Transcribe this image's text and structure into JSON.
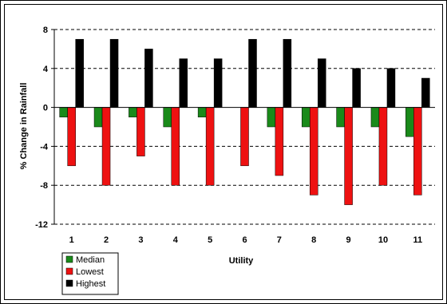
{
  "chart_data": {
    "type": "bar",
    "title": "",
    "xlabel": "Utility",
    "ylabel": "% Change in Rainfall",
    "categories": [
      "1",
      "2",
      "3",
      "4",
      "5",
      "6",
      "7",
      "8",
      "9",
      "10",
      "11"
    ],
    "series": [
      {
        "name": "Median",
        "color": "#1a8a1a",
        "values": [
          -1,
          -2,
          -1,
          -2,
          -1,
          0,
          -2,
          -2,
          -2,
          -2,
          -3
        ]
      },
      {
        "name": "Lowest",
        "color": "#ee1111",
        "values": [
          -6,
          -8,
          -5,
          -8,
          -8,
          -6,
          -7,
          -9,
          -10,
          -8,
          -9
        ]
      },
      {
        "name": "Highest",
        "color": "#000000",
        "values": [
          7,
          7,
          6,
          5,
          5,
          7,
          7,
          5,
          4,
          4,
          3
        ]
      }
    ],
    "ylim": [
      -12,
      8
    ],
    "yticks": [
      8,
      4,
      0,
      -4,
      -8,
      -12
    ],
    "grid": true,
    "legend_position": "bottom-left"
  }
}
